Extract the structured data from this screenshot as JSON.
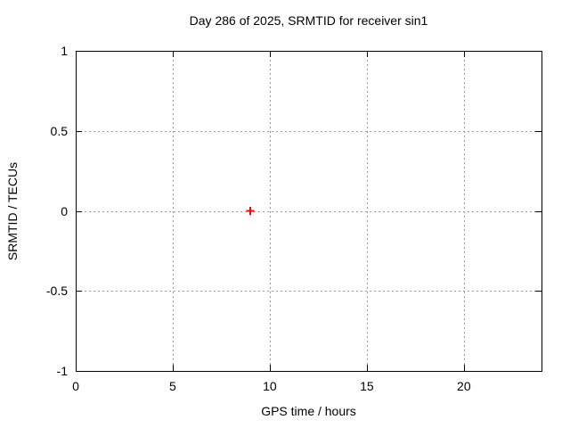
{
  "chart_data": {
    "type": "scatter",
    "title": "Day 286 of 2025, SRMTID for receiver sin1",
    "xlabel": "GPS time / hours",
    "ylabel": "SRMTID / TECUs",
    "xlim": [
      0,
      24
    ],
    "ylim": [
      -1,
      1
    ],
    "xticks": [
      {
        "value": 0,
        "label": "0"
      },
      {
        "value": 5,
        "label": "5"
      },
      {
        "value": 10,
        "label": "10"
      },
      {
        "value": 15,
        "label": "15"
      },
      {
        "value": 20,
        "label": "20"
      }
    ],
    "yticks": [
      {
        "value": -1,
        "label": "-1"
      },
      {
        "value": -0.5,
        "label": "-0.5"
      },
      {
        "value": 0,
        "label": "0"
      },
      {
        "value": 0.5,
        "label": "0.5"
      },
      {
        "value": 1,
        "label": "1"
      }
    ],
    "grid": "dashed",
    "legend": "none",
    "series": [
      {
        "marker": "plus",
        "color": "#ff0000",
        "points": [
          {
            "x": 9,
            "y": 0
          }
        ]
      }
    ],
    "colors": {
      "background": "#ffffff",
      "axis": "#000000",
      "grid": "#999999",
      "text": "#000000"
    }
  }
}
